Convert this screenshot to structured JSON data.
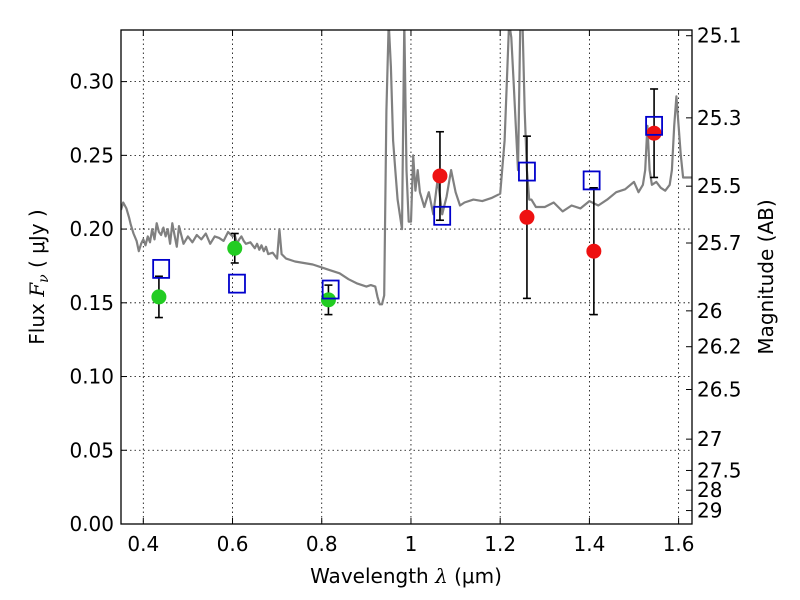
{
  "chart_data": {
    "type": "scatter",
    "xlabel": {
      "prefix": "Wavelength  ",
      "symbol": "λ",
      "suffix": " (μm)"
    },
    "ylabel": {
      "prefix": "Flux  ",
      "symbol": "F",
      "subscript": "ν",
      "suffix": "  ( μJy )"
    },
    "y2label": "Magnitude (AB)",
    "xlim": [
      0.35,
      1.63
    ],
    "ylim": [
      0.0,
      0.335
    ],
    "grid": true,
    "x_ticks": [
      {
        "value": 0.4,
        "label": "0.4"
      },
      {
        "value": 0.6,
        "label": "0.6"
      },
      {
        "value": 0.8,
        "label": "0.8"
      },
      {
        "value": 1.0,
        "label": "1"
      },
      {
        "value": 1.2,
        "label": "1.2"
      },
      {
        "value": 1.4,
        "label": "1.4"
      },
      {
        "value": 1.6,
        "label": "1.6"
      }
    ],
    "y_ticks": [
      {
        "value": 0.0,
        "label": "0.00"
      },
      {
        "value": 0.05,
        "label": "0.05"
      },
      {
        "value": 0.1,
        "label": "0.10"
      },
      {
        "value": 0.15,
        "label": "0.15"
      },
      {
        "value": 0.2,
        "label": "0.20"
      },
      {
        "value": 0.25,
        "label": "0.25"
      },
      {
        "value": 0.3,
        "label": "0.30"
      }
    ],
    "y2_ticks": [
      {
        "mag": 25.1,
        "label": "25.1"
      },
      {
        "mag": 25.3,
        "label": "25.3"
      },
      {
        "mag": 25.5,
        "label": "25.5"
      },
      {
        "mag": 25.7,
        "label": "25.7"
      },
      {
        "mag": 26.0,
        "label": "26"
      },
      {
        "mag": 26.2,
        "label": "26.2"
      },
      {
        "mag": 26.5,
        "label": "26.5"
      },
      {
        "mag": 27.0,
        "label": "27"
      },
      {
        "mag": 27.5,
        "label": "27.5"
      },
      {
        "mag": 28.0,
        "label": "28"
      },
      {
        "mag": 29.0,
        "label": "29"
      }
    ],
    "model_spectrum": {
      "color": "#808080",
      "x": [
        0.35,
        0.355,
        0.362,
        0.368,
        0.372,
        0.378,
        0.385,
        0.39,
        0.395,
        0.4,
        0.405,
        0.41,
        0.415,
        0.42,
        0.425,
        0.43,
        0.435,
        0.44,
        0.445,
        0.45,
        0.455,
        0.46,
        0.465,
        0.47,
        0.475,
        0.48,
        0.49,
        0.5,
        0.51,
        0.52,
        0.53,
        0.54,
        0.55,
        0.56,
        0.57,
        0.58,
        0.59,
        0.6,
        0.605,
        0.61,
        0.615,
        0.62,
        0.625,
        0.63,
        0.64,
        0.65,
        0.655,
        0.66,
        0.665,
        0.67,
        0.675,
        0.68,
        0.69,
        0.7,
        0.705,
        0.71,
        0.72,
        0.74,
        0.76,
        0.78,
        0.8,
        0.82,
        0.84,
        0.86,
        0.88,
        0.9,
        0.91,
        0.92,
        0.925,
        0.93,
        0.935,
        0.94,
        0.945,
        0.95,
        0.955,
        0.96,
        0.965,
        0.97,
        0.975,
        0.98,
        0.985,
        0.99,
        0.995,
        1.0,
        1.005,
        1.01,
        1.015,
        1.02,
        1.03,
        1.04,
        1.05,
        1.06,
        1.07,
        1.08,
        1.09,
        1.1,
        1.11,
        1.12,
        1.14,
        1.16,
        1.18,
        1.2,
        1.21,
        1.22,
        1.225,
        1.23,
        1.235,
        1.24,
        1.245,
        1.25,
        1.255,
        1.26,
        1.265,
        1.27,
        1.28,
        1.3,
        1.32,
        1.34,
        1.36,
        1.38,
        1.4,
        1.42,
        1.44,
        1.46,
        1.48,
        1.5,
        1.51,
        1.52,
        1.525,
        1.53,
        1.535,
        1.54,
        1.55,
        1.56,
        1.57,
        1.58,
        1.585,
        1.59,
        1.595,
        1.6,
        1.605,
        1.61,
        1.62,
        1.63
      ],
      "y": [
        0.213,
        0.218,
        0.214,
        0.208,
        0.203,
        0.197,
        0.192,
        0.185,
        0.19,
        0.193,
        0.189,
        0.195,
        0.191,
        0.2,
        0.193,
        0.204,
        0.198,
        0.196,
        0.201,
        0.195,
        0.2,
        0.19,
        0.204,
        0.196,
        0.188,
        0.202,
        0.19,
        0.195,
        0.191,
        0.196,
        0.193,
        0.197,
        0.19,
        0.195,
        0.194,
        0.192,
        0.198,
        0.195,
        0.196,
        0.19,
        0.193,
        0.195,
        0.192,
        0.19,
        0.191,
        0.187,
        0.19,
        0.186,
        0.189,
        0.185,
        0.188,
        0.183,
        0.184,
        0.18,
        0.2,
        0.183,
        0.18,
        0.178,
        0.177,
        0.176,
        0.174,
        0.172,
        0.17,
        0.166,
        0.163,
        0.161,
        0.162,
        0.161,
        0.154,
        0.149,
        0.149,
        0.155,
        0.28,
        0.34,
        0.31,
        0.26,
        0.24,
        0.22,
        0.21,
        0.2,
        0.34,
        0.24,
        0.205,
        0.205,
        0.25,
        0.226,
        0.24,
        0.225,
        0.215,
        0.225,
        0.21,
        0.234,
        0.21,
        0.222,
        0.24,
        0.225,
        0.216,
        0.218,
        0.22,
        0.219,
        0.221,
        0.224,
        0.26,
        0.34,
        0.33,
        0.3,
        0.27,
        0.24,
        0.34,
        0.34,
        0.28,
        0.24,
        0.22,
        0.22,
        0.215,
        0.215,
        0.218,
        0.212,
        0.216,
        0.214,
        0.219,
        0.216,
        0.22,
        0.225,
        0.227,
        0.232,
        0.225,
        0.23,
        0.24,
        0.27,
        0.24,
        0.23,
        0.232,
        0.228,
        0.226,
        0.23,
        0.24,
        0.27,
        0.29,
        0.27,
        0.25,
        0.235,
        0.235,
        0.235
      ]
    },
    "series": [
      {
        "marker": "circle",
        "color": "#22cc22",
        "x": [
          0.435,
          0.605,
          0.815
        ],
        "y": [
          0.154,
          0.187,
          0.152
        ],
        "err": [
          0.014,
          0.01,
          0.01
        ]
      },
      {
        "marker": "circle",
        "color": "#ee1111",
        "x": [
          1.065,
          1.26,
          1.41,
          1.545
        ],
        "y": [
          0.236,
          0.208,
          0.185,
          0.265
        ],
        "err": [
          0.03,
          0.055,
          0.043,
          0.03
        ]
      },
      {
        "marker": "open-square",
        "color": "#0000cc",
        "x": [
          0.44,
          0.61,
          0.82,
          1.07,
          1.26,
          1.405,
          1.545
        ],
        "y": [
          0.173,
          0.163,
          0.159,
          0.209,
          0.239,
          0.233,
          0.27
        ]
      }
    ]
  }
}
